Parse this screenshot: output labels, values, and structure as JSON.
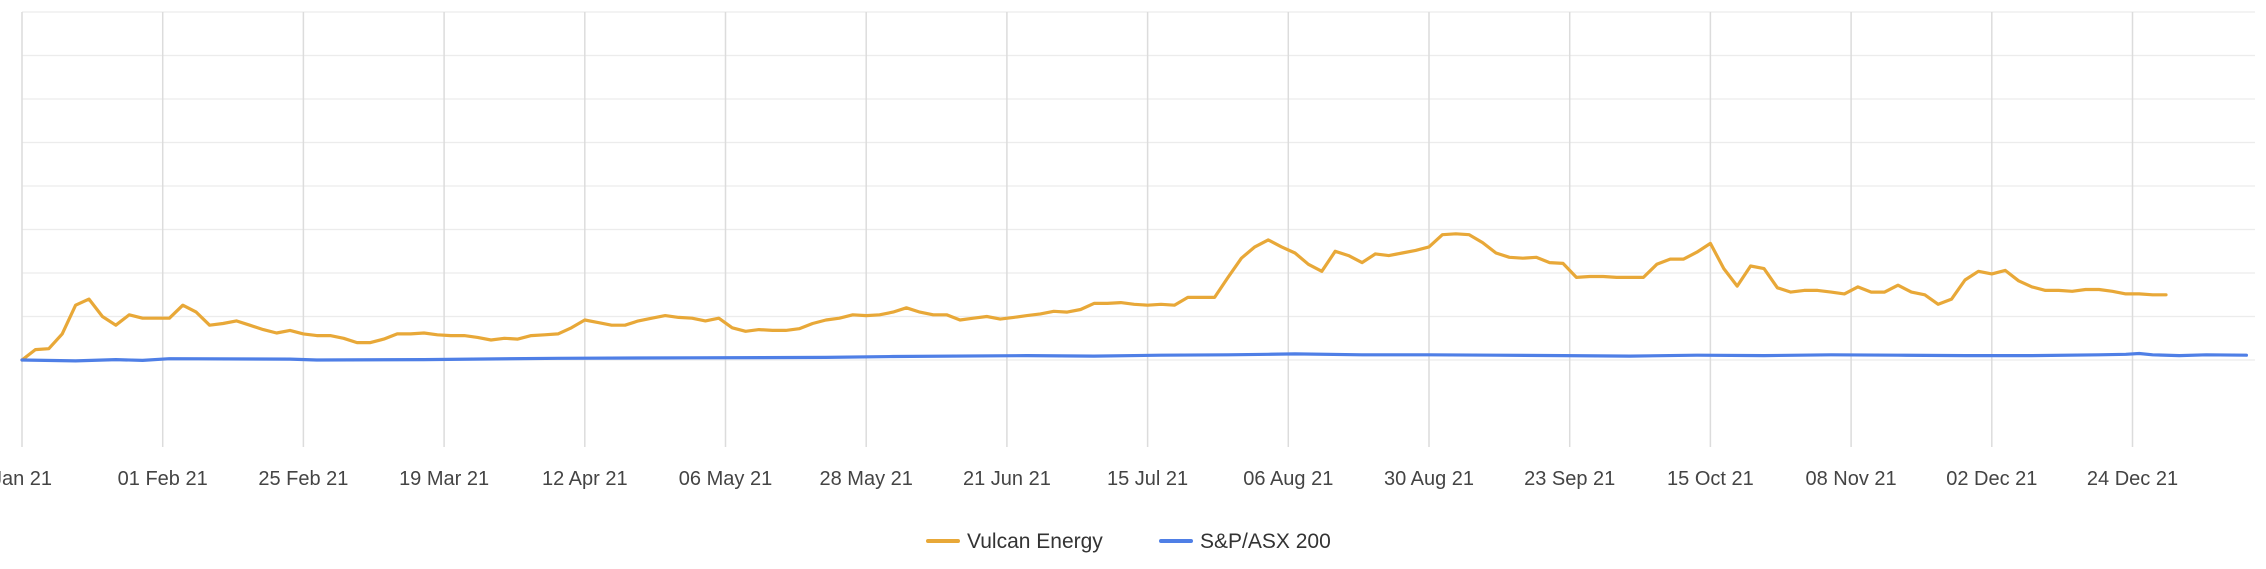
{
  "chart_data": {
    "type": "line",
    "title": "",
    "xlabel": "",
    "ylabel": "",
    "grid": true,
    "legend_position": "bottom-center",
    "x_tick_labels": [
      "Jan 21",
      "01 Feb 21",
      "25 Feb 21",
      "19 Mar 21",
      "12 Apr 21",
      "06 May 21",
      "28 May 21",
      "21 Jun 21",
      "15 Jul 21",
      "06 Aug 21",
      "30 Aug 21",
      "23 Sep 21",
      "15 Oct 21",
      "08 Nov 21",
      "02 Dec 21",
      "24 Dec 21"
    ],
    "x_tick_days": [
      0,
      21,
      42,
      63,
      84,
      105,
      126,
      147,
      168,
      189,
      210,
      231,
      252,
      273,
      294,
      315
    ],
    "x_range_days": [
      0,
      332
    ],
    "y_range": [
      -100,
      400
    ],
    "y_gridlines": [
      0,
      50,
      100,
      150,
      200,
      250,
      300,
      350,
      400
    ],
    "series": [
      {
        "name": "Vulcan Energy",
        "color": "#e8a838",
        "points": [
          [
            0,
            0
          ],
          [
            2,
            12
          ],
          [
            4,
            13
          ],
          [
            6,
            30
          ],
          [
            8,
            63
          ],
          [
            10,
            70
          ],
          [
            12,
            50
          ],
          [
            14,
            40
          ],
          [
            16,
            52
          ],
          [
            18,
            48
          ],
          [
            20,
            48
          ],
          [
            22,
            48
          ],
          [
            24,
            63
          ],
          [
            26,
            55
          ],
          [
            28,
            40
          ],
          [
            30,
            42
          ],
          [
            32,
            45
          ],
          [
            34,
            40
          ],
          [
            36,
            35
          ],
          [
            38,
            31
          ],
          [
            40,
            34
          ],
          [
            42,
            30
          ],
          [
            44,
            28
          ],
          [
            46,
            28
          ],
          [
            48,
            25
          ],
          [
            50,
            20
          ],
          [
            52,
            20
          ],
          [
            54,
            24
          ],
          [
            56,
            30
          ],
          [
            58,
            30
          ],
          [
            60,
            31
          ],
          [
            62,
            29
          ],
          [
            64,
            28
          ],
          [
            66,
            28
          ],
          [
            68,
            26
          ],
          [
            70,
            23
          ],
          [
            72,
            25
          ],
          [
            74,
            24
          ],
          [
            76,
            28
          ],
          [
            78,
            29
          ],
          [
            80,
            30
          ],
          [
            82,
            37
          ],
          [
            84,
            46
          ],
          [
            86,
            43
          ],
          [
            88,
            40
          ],
          [
            90,
            40
          ],
          [
            92,
            45
          ],
          [
            94,
            48
          ],
          [
            96,
            51
          ],
          [
            98,
            49
          ],
          [
            100,
            48
          ],
          [
            102,
            45
          ],
          [
            104,
            48
          ],
          [
            106,
            37
          ],
          [
            108,
            33
          ],
          [
            110,
            35
          ],
          [
            112,
            34
          ],
          [
            114,
            34
          ],
          [
            116,
            36
          ],
          [
            118,
            42
          ],
          [
            120,
            46
          ],
          [
            122,
            48
          ],
          [
            124,
            52
          ],
          [
            126,
            51
          ],
          [
            128,
            52
          ],
          [
            130,
            55
          ],
          [
            132,
            60
          ],
          [
            134,
            55
          ],
          [
            136,
            52
          ],
          [
            138,
            52
          ],
          [
            140,
            46
          ],
          [
            142,
            48
          ],
          [
            144,
            50
          ],
          [
            146,
            47
          ],
          [
            148,
            49
          ],
          [
            150,
            51
          ],
          [
            152,
            53
          ],
          [
            154,
            56
          ],
          [
            156,
            55
          ],
          [
            158,
            58
          ],
          [
            160,
            65
          ],
          [
            162,
            65
          ],
          [
            164,
            66
          ],
          [
            166,
            64
          ],
          [
            168,
            63
          ],
          [
            170,
            64
          ],
          [
            172,
            63
          ],
          [
            174,
            72
          ],
          [
            176,
            72
          ],
          [
            178,
            72
          ],
          [
            180,
            95
          ],
          [
            182,
            117
          ],
          [
            184,
            130
          ],
          [
            186,
            138
          ],
          [
            188,
            130
          ],
          [
            190,
            123
          ],
          [
            192,
            110
          ],
          [
            194,
            102
          ],
          [
            196,
            125
          ],
          [
            198,
            120
          ],
          [
            200,
            112
          ],
          [
            202,
            122
          ],
          [
            204,
            120
          ],
          [
            206,
            123
          ],
          [
            208,
            126
          ],
          [
            210,
            130
          ],
          [
            212,
            144
          ],
          [
            214,
            145
          ],
          [
            216,
            144
          ],
          [
            218,
            135
          ],
          [
            220,
            123
          ],
          [
            222,
            118
          ],
          [
            224,
            117
          ],
          [
            226,
            118
          ],
          [
            228,
            112
          ],
          [
            230,
            111
          ],
          [
            232,
            95
          ],
          [
            234,
            96
          ],
          [
            236,
            96
          ],
          [
            238,
            95
          ],
          [
            240,
            95
          ],
          [
            242,
            95
          ],
          [
            244,
            110
          ],
          [
            246,
            116
          ],
          [
            248,
            116
          ],
          [
            250,
            124
          ],
          [
            252,
            134
          ],
          [
            254,
            105
          ],
          [
            256,
            85
          ],
          [
            258,
            108
          ],
          [
            260,
            105
          ],
          [
            262,
            83
          ],
          [
            264,
            78
          ],
          [
            266,
            80
          ],
          [
            268,
            80
          ],
          [
            270,
            78
          ],
          [
            272,
            76
          ],
          [
            274,
            84
          ],
          [
            276,
            78
          ],
          [
            278,
            78
          ],
          [
            280,
            86
          ],
          [
            282,
            78
          ],
          [
            284,
            75
          ],
          [
            286,
            64
          ],
          [
            288,
            70
          ],
          [
            290,
            92
          ],
          [
            292,
            102
          ],
          [
            294,
            99
          ],
          [
            296,
            103
          ],
          [
            298,
            91
          ],
          [
            300,
            84
          ],
          [
            302,
            80
          ],
          [
            304,
            80
          ],
          [
            306,
            79
          ],
          [
            308,
            81
          ],
          [
            310,
            81
          ],
          [
            312,
            79
          ],
          [
            314,
            76
          ],
          [
            316,
            76
          ],
          [
            318,
            75
          ],
          [
            320,
            75
          ]
        ]
      },
      {
        "name": "S&P/ASX 200",
        "color": "#4f7fe6",
        "points": [
          [
            0,
            0
          ],
          [
            8,
            -1
          ],
          [
            14,
            0.5
          ],
          [
            18,
            -0.5
          ],
          [
            22,
            1.5
          ],
          [
            40,
            1
          ],
          [
            44,
            0
          ],
          [
            60,
            0.5
          ],
          [
            80,
            2
          ],
          [
            100,
            2.5
          ],
          [
            120,
            3
          ],
          [
            130,
            4
          ],
          [
            150,
            5
          ],
          [
            160,
            4.5
          ],
          [
            170,
            5.5
          ],
          [
            180,
            6
          ],
          [
            186,
            6.5
          ],
          [
            190,
            7
          ],
          [
            200,
            6
          ],
          [
            210,
            6
          ],
          [
            220,
            5.5
          ],
          [
            230,
            5
          ],
          [
            240,
            4.5
          ],
          [
            250,
            5.5
          ],
          [
            260,
            5
          ],
          [
            270,
            6
          ],
          [
            280,
            5.5
          ],
          [
            290,
            5
          ],
          [
            300,
            5
          ],
          [
            310,
            6
          ],
          [
            314,
            6.5
          ],
          [
            316,
            7.5
          ],
          [
            318,
            6
          ],
          [
            322,
            5
          ],
          [
            326,
            6
          ],
          [
            332,
            5.5
          ]
        ]
      }
    ]
  }
}
